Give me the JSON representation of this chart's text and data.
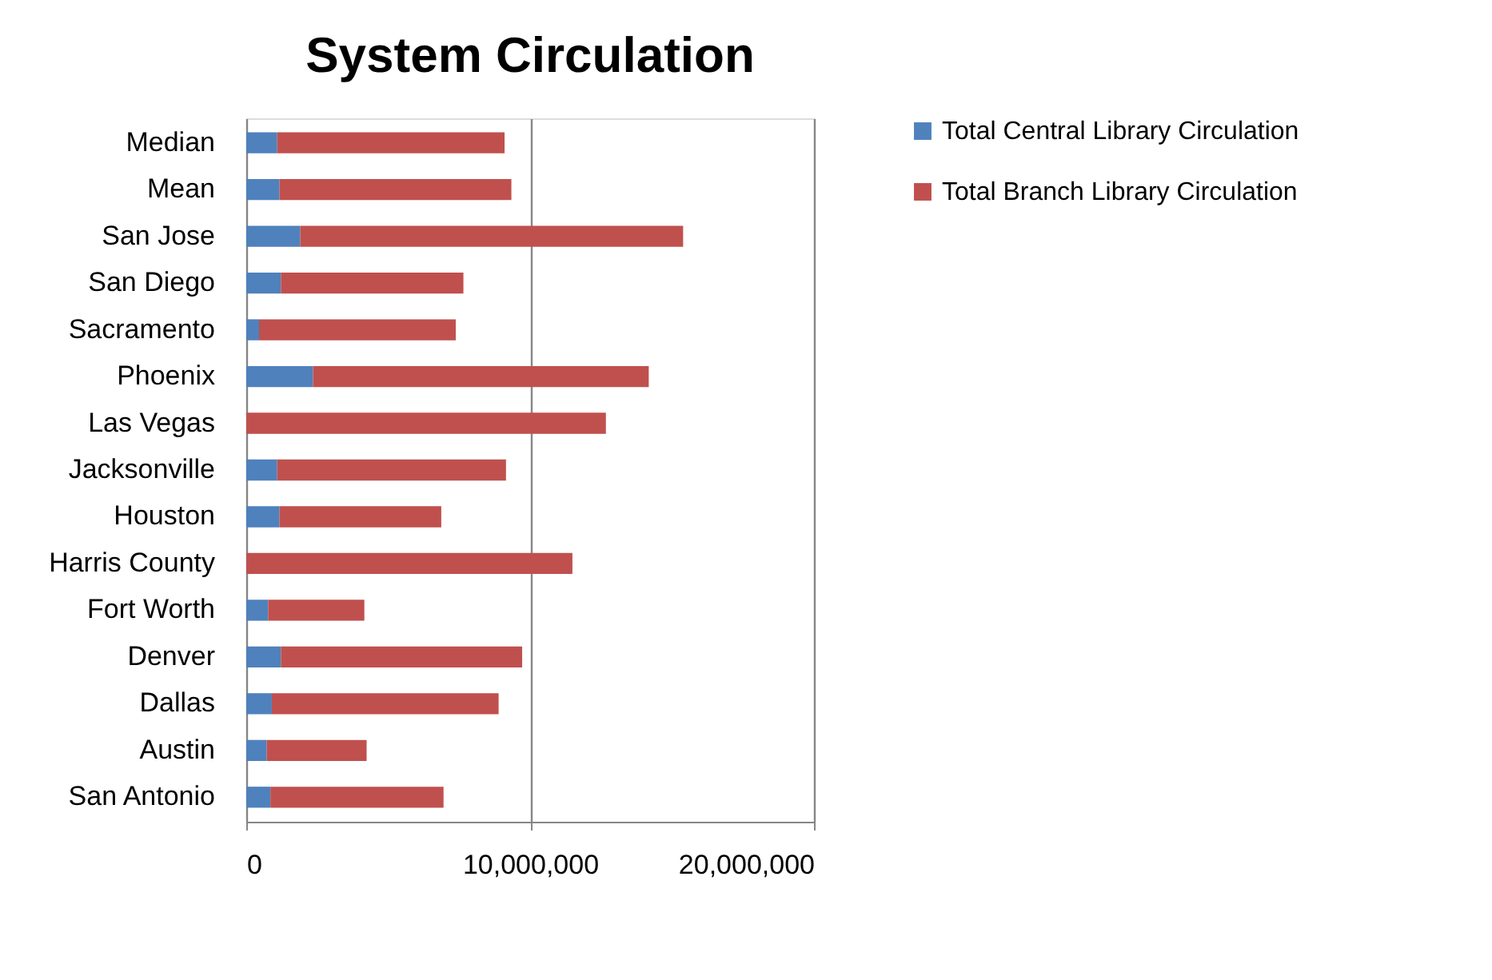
{
  "chart_data": {
    "type": "bar",
    "orientation": "horizontal",
    "stacked": true,
    "title": "System Circulation",
    "categories": [
      "Median",
      "Mean",
      "San Jose",
      "San Diego",
      "Sacramento",
      "Phoenix",
      "Las Vegas",
      "Jacksonville",
      "Houston",
      "Harris County",
      "Fort Worth",
      "Denver",
      "Dallas",
      "Austin",
      "San Antonio"
    ],
    "series": [
      {
        "name": "Total Central Library Circulation",
        "color": "#4f81bd",
        "values": [
          1090000,
          1170000,
          1900000,
          1220000,
          450000,
          2350000,
          0,
          1090000,
          1170000,
          0,
          770000,
          1220000,
          900000,
          720000,
          850000
        ]
      },
      {
        "name": "Total Branch Library Circulation",
        "color": "#c0504d",
        "values": [
          8010000,
          8170000,
          13490000,
          6430000,
          6930000,
          11830000,
          12670000,
          8060000,
          5700000,
          11490000,
          3390000,
          8500000,
          7990000,
          3520000,
          6100000
        ]
      }
    ],
    "xlim": [
      0,
      20000000
    ],
    "xticks": [
      0,
      {
        "value": 10000000,
        "label": "10,000,000"
      },
      {
        "value": 20000000,
        "label": "20,000,000"
      }
    ],
    "grid": "x",
    "legend": "right"
  }
}
